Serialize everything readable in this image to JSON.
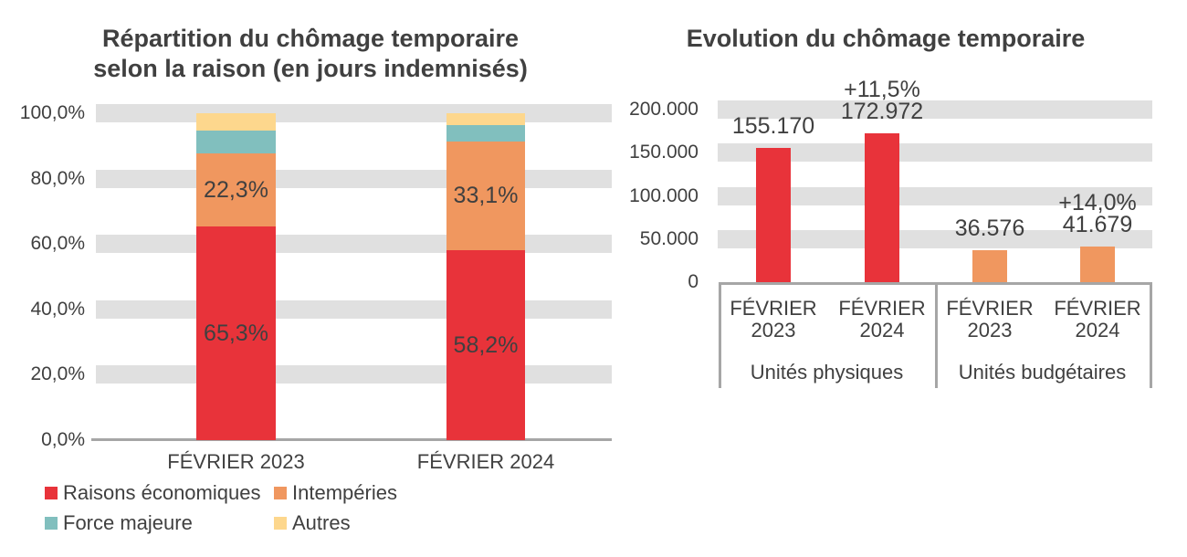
{
  "colors": {
    "red": "#E8333A",
    "orange": "#F0975F",
    "teal": "#81BFBE",
    "yellow": "#FDD78D",
    "gridband": "#E0E0E0",
    "axis": "#A6A6A6",
    "text": "#404040",
    "background": "#FFFFFF"
  },
  "chart_data": [
    {
      "type": "stacked-bar-100",
      "title_lines": [
        "Répartition du chômage temporaire",
        "selon la raison (en jours indemnisés)"
      ],
      "categories": [
        "FÉVRIER 2023",
        "FÉVRIER 2024"
      ],
      "series": [
        {
          "name": "Raisons économiques",
          "color": "#E8333A",
          "values": [
            65.3,
            58.2
          ],
          "value_labels": [
            "65,3%",
            "58,2%"
          ]
        },
        {
          "name": "Intempéries",
          "color": "#F0975F",
          "values": [
            22.3,
            33.1
          ],
          "value_labels": [
            "22,3%",
            "33,1%"
          ]
        },
        {
          "name": "Force majeure",
          "color": "#81BFBE",
          "values": [
            7.0,
            5.2
          ],
          "value_labels": [
            null,
            null
          ]
        },
        {
          "name": "Autres",
          "color": "#FDD78D",
          "values": [
            5.4,
            3.5
          ],
          "value_labels": [
            null,
            null
          ]
        }
      ],
      "y_ticks": [
        {
          "value": 100,
          "label": "100,0%"
        },
        {
          "value": 80,
          "label": "80,0%"
        },
        {
          "value": 60,
          "label": "60,0%"
        },
        {
          "value": 40,
          "label": "40,0%"
        },
        {
          "value": 20,
          "label": "20,0%"
        },
        {
          "value": 0,
          "label": "0,0%"
        }
      ],
      "ylim": [
        0,
        100
      ],
      "legend_position": "bottom-left-two-columns",
      "grid": "horizontal-bands"
    },
    {
      "type": "bar",
      "title": "Evolution du chômage temporaire",
      "y_ticks": [
        {
          "value": 200000,
          "label": "200.000"
        },
        {
          "value": 150000,
          "label": "150.000"
        },
        {
          "value": 100000,
          "label": "100.000"
        },
        {
          "value": 50000,
          "label": "50.000"
        },
        {
          "value": 0,
          "label": "0"
        }
      ],
      "ylim": [
        0,
        200000
      ],
      "grid": "horizontal-bands",
      "groups": [
        {
          "label": "Unités physiques",
          "bars": [
            {
              "category": [
                "FÉVRIER",
                "2023"
              ],
              "value": 155170,
              "value_label": "155.170",
              "delta_label": null,
              "color": "#E8333A"
            },
            {
              "category": [
                "FÉVRIER",
                "2024"
              ],
              "value": 172972,
              "value_label": "172.972",
              "delta_label": "+11,5%",
              "color": "#E8333A"
            }
          ]
        },
        {
          "label": "Unités budgétaires",
          "bars": [
            {
              "category": [
                "FÉVRIER",
                "2023"
              ],
              "value": 36576,
              "value_label": "36.576",
              "delta_label": null,
              "color": "#F0975F"
            },
            {
              "category": [
                "FÉVRIER",
                "2024"
              ],
              "value": 41679,
              "value_label": "41.679",
              "delta_label": "+14,0%",
              "color": "#F0975F"
            }
          ]
        }
      ]
    }
  ]
}
